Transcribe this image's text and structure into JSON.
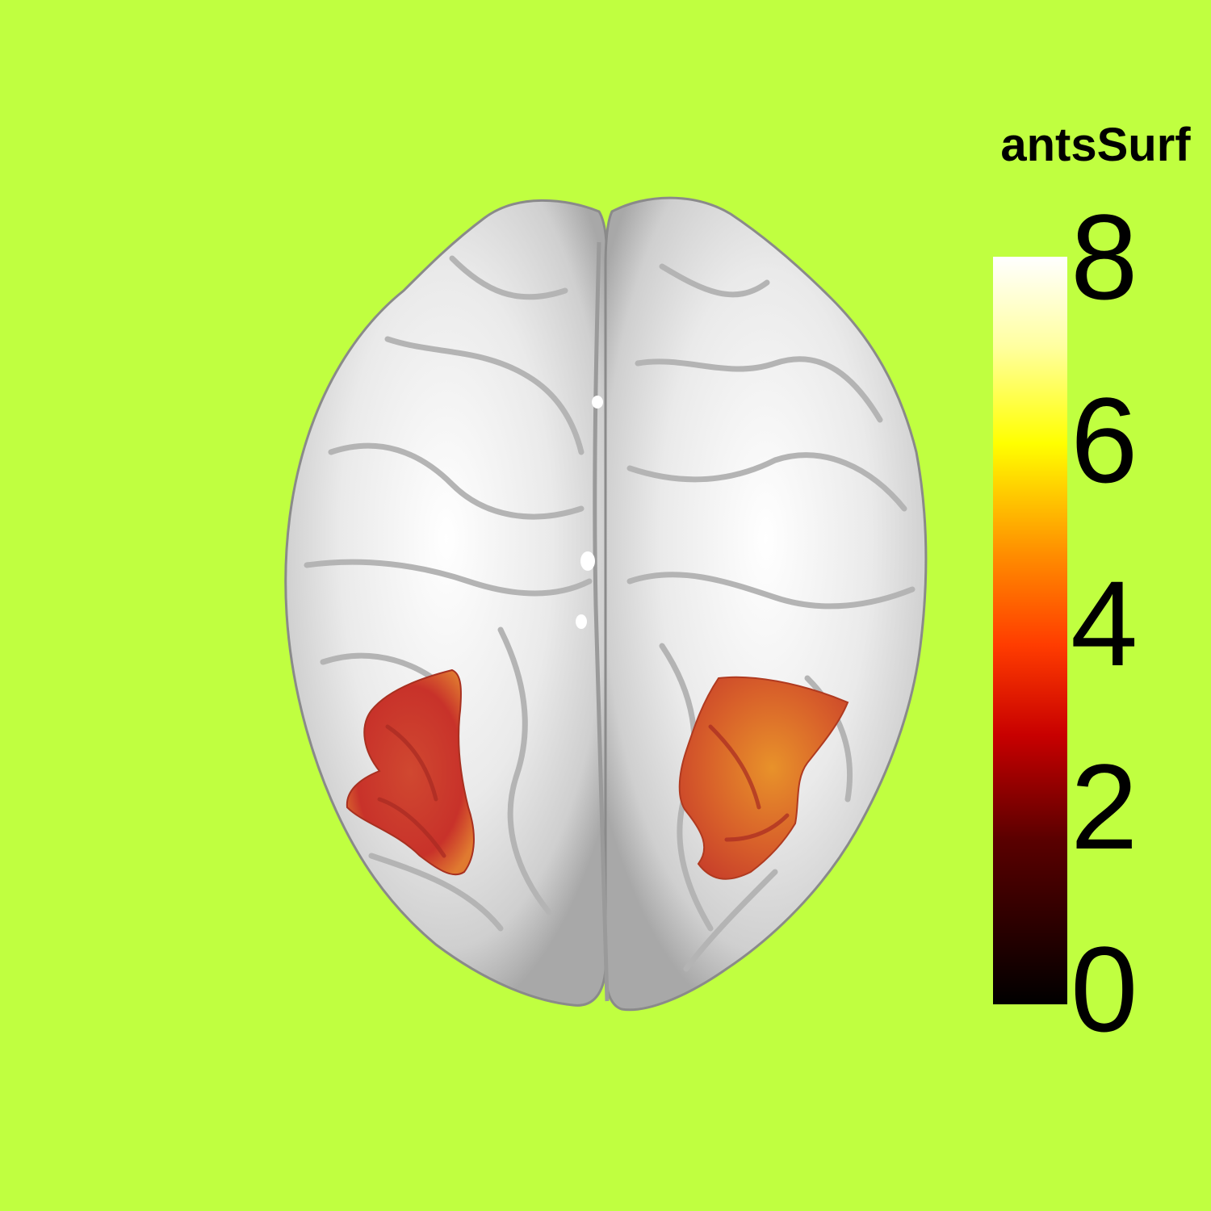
{
  "colorbar": {
    "title": "antsSurf",
    "ticks": [
      "8",
      "6",
      "4",
      "2",
      "0"
    ],
    "min": 0,
    "max": 8,
    "colormap": "hot"
  },
  "colors": {
    "background": "#c0ff40",
    "surface": "#eeeeee",
    "overlay_low": "#c8322a",
    "overlay_high": "#e8822a"
  }
}
